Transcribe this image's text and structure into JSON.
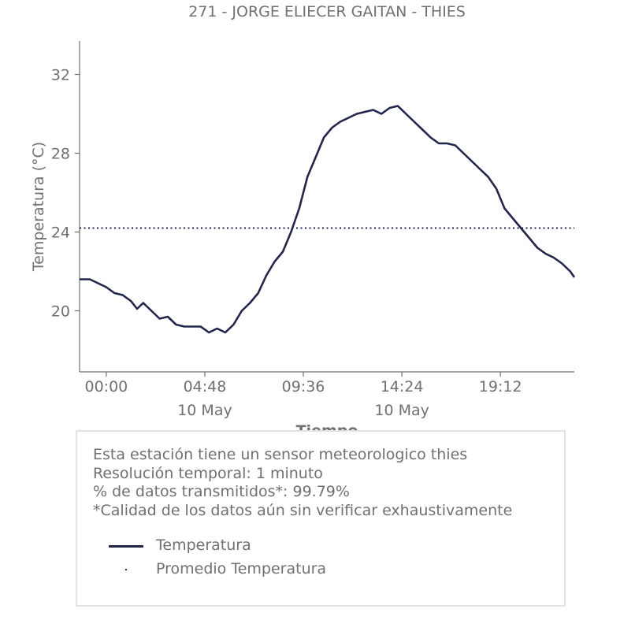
{
  "chart_data": {
    "type": "line",
    "title": "271 - JORGE ELIECER GAITAN - THIES",
    "xlabel": "Tiempo",
    "ylabel": "Temperatura (°C)",
    "ylim": [
      16.9,
      33.7
    ],
    "yticks": [
      20,
      24,
      28,
      32
    ],
    "ytick_labels": [
      "20",
      "24",
      "28",
      "32"
    ],
    "xlim_hours": [
      -1.3,
      22.8
    ],
    "xticks_hours": [
      0,
      4.8,
      9.6,
      14.4,
      19.2
    ],
    "xtick_labels": [
      "00:00",
      "04:48",
      "09:36",
      "14:24",
      "19:12"
    ],
    "xtick_sublabels": [
      "",
      "10 May",
      "",
      "10 May",
      ""
    ],
    "grid": false,
    "series": [
      {
        "name": "Temperatura",
        "color": "#22264a",
        "style": "solid",
        "x_hours": [
          -1.3,
          -0.8,
          -0.4,
          0.0,
          0.4,
          0.8,
          1.2,
          1.5,
          1.8,
          2.2,
          2.6,
          3.0,
          3.4,
          3.8,
          4.2,
          4.6,
          5.0,
          5.4,
          5.8,
          6.2,
          6.6,
          7.0,
          7.4,
          7.8,
          8.2,
          8.6,
          9.0,
          9.4,
          9.8,
          10.2,
          10.6,
          11.0,
          11.4,
          11.8,
          12.2,
          12.6,
          13.0,
          13.4,
          13.8,
          14.2,
          14.6,
          15.0,
          15.4,
          15.8,
          16.2,
          16.6,
          17.0,
          17.4,
          17.8,
          18.2,
          18.6,
          19.0,
          19.4,
          19.8,
          20.2,
          20.6,
          21.0,
          21.4,
          21.8,
          22.2,
          22.6,
          22.8
        ],
        "values": [
          21.6,
          21.6,
          21.4,
          21.2,
          20.9,
          20.8,
          20.5,
          20.1,
          20.4,
          20.0,
          19.6,
          19.7,
          19.3,
          19.2,
          19.2,
          19.2,
          18.9,
          19.1,
          18.9,
          19.3,
          20.0,
          20.4,
          20.9,
          21.8,
          22.5,
          23.0,
          24.0,
          25.2,
          26.8,
          27.8,
          28.8,
          29.3,
          29.6,
          29.8,
          30.0,
          30.1,
          30.2,
          30.0,
          30.3,
          30.4,
          30.0,
          29.6,
          29.2,
          28.8,
          28.5,
          28.5,
          28.4,
          28.0,
          27.6,
          27.2,
          26.8,
          26.2,
          25.2,
          24.7,
          24.2,
          23.7,
          23.2,
          22.9,
          22.7,
          22.4,
          22.0,
          21.7
        ]
      },
      {
        "name": "Promedio Temperatura",
        "color": "#22264a",
        "style": "dotted",
        "constant": 24.2
      }
    ]
  },
  "info": {
    "lines": [
      "Esta estación tiene un sensor meteorologico thies",
      "Resolución temporal: 1 minuto",
      "% de datos transmitidos*: 99.79%",
      "*Calidad de los datos aún sin verificar exhaustivamente"
    ]
  },
  "legend": {
    "items": [
      {
        "label": "Temperatura"
      },
      {
        "label": "Promedio Temperatura"
      }
    ]
  }
}
